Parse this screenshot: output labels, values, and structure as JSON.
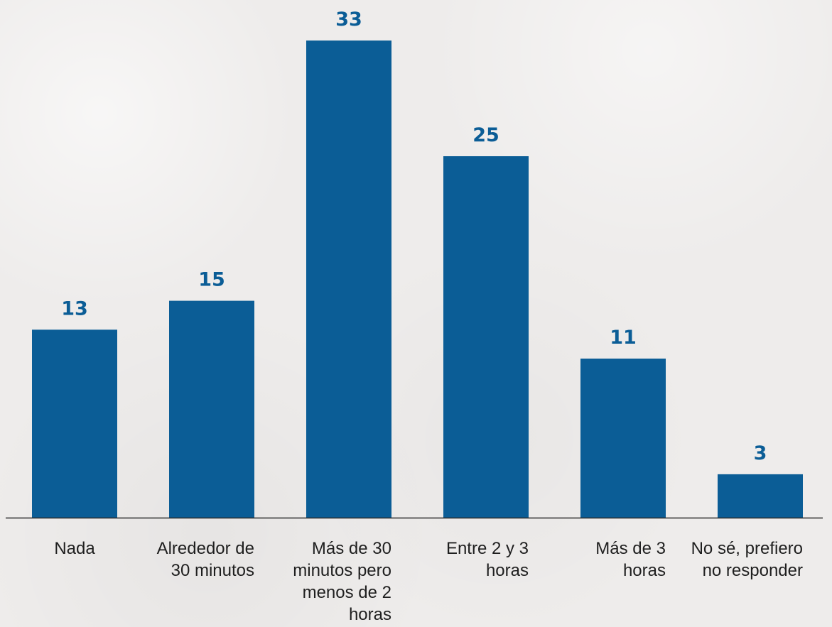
{
  "chart_data": {
    "type": "bar",
    "categories": [
      [
        "Nada"
      ],
      [
        "Alrededor de",
        "30 minutos"
      ],
      [
        "Más de 30",
        "minutos pero",
        "menos de 2",
        "horas"
      ],
      [
        "Entre 2 y 3",
        "horas"
      ],
      [
        "Más de 3",
        "horas"
      ],
      [
        "No sé, prefiero",
        "no responder"
      ]
    ],
    "values": [
      13,
      15,
      33,
      25,
      11,
      3
    ],
    "ylim": [
      0,
      35
    ],
    "grid": false,
    "legend": "none"
  },
  "colors": {
    "bar": "#0b5d96",
    "value_label": "#0b5d96",
    "axis": "#2a2a2a",
    "tick_label": "#1f1f1f",
    "background": "#eeeceb"
  }
}
